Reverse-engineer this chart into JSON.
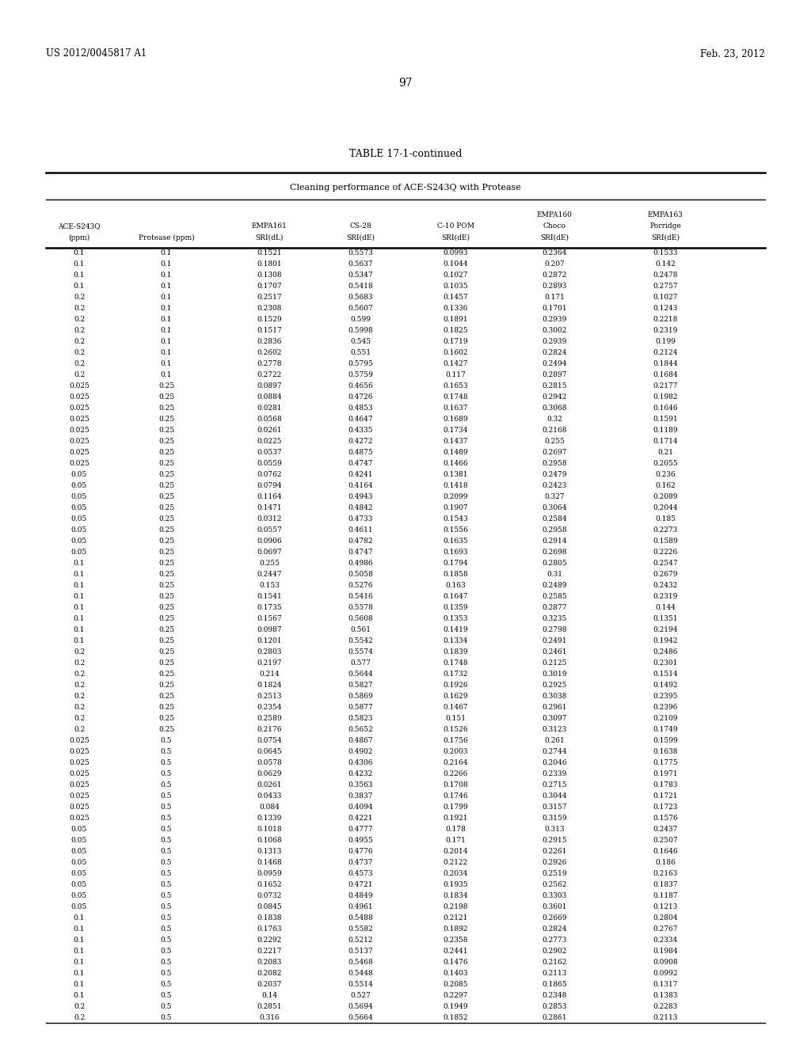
{
  "title": "TABLE 17-1-continued",
  "subtitle": "Cleaning performance of ACE-S243Q with Protease",
  "rows": [
    [
      "0.1",
      "0.1",
      "0.1521",
      "0.5573",
      "0.0993",
      "0.2364",
      "0.1533"
    ],
    [
      "0.1",
      "0.1",
      "0.1801",
      "0.5637",
      "0.1044",
      "0.207",
      "0.142"
    ],
    [
      "0.1",
      "0.1",
      "0.1308",
      "0.5347",
      "0.1027",
      "0.2872",
      "0.2478"
    ],
    [
      "0.1",
      "0.1",
      "0.1707",
      "0.5418",
      "0.1035",
      "0.2893",
      "0.2757"
    ],
    [
      "0.2",
      "0.1",
      "0.2517",
      "0.5683",
      "0.1457",
      "0.171",
      "0.1027"
    ],
    [
      "0.2",
      "0.1",
      "0.2308",
      "0.5607",
      "0.1336",
      "0.1701",
      "0.1243"
    ],
    [
      "0.2",
      "0.1",
      "0.1529",
      "0.599",
      "0.1891",
      "0.2939",
      "0.2218"
    ],
    [
      "0.2",
      "0.1",
      "0.1517",
      "0.5998",
      "0.1825",
      "0.3002",
      "0.2319"
    ],
    [
      "0.2",
      "0.1",
      "0.2836",
      "0.545",
      "0.1719",
      "0.2939",
      "0.199"
    ],
    [
      "0.2",
      "0.1",
      "0.2602",
      "0.551",
      "0.1602",
      "0.2824",
      "0.2124"
    ],
    [
      "0.2",
      "0.1",
      "0.2778",
      "0.5795",
      "0.1427",
      "0.2494",
      "0.1844"
    ],
    [
      "0.2",
      "0.1",
      "0.2722",
      "0.5759",
      "0.117",
      "0.2897",
      "0.1684"
    ],
    [
      "0.025",
      "0.25",
      "0.0897",
      "0.4656",
      "0.1653",
      "0.2815",
      "0.2177"
    ],
    [
      "0.025",
      "0.25",
      "0.0884",
      "0.4726",
      "0.1748",
      "0.2942",
      "0.1982"
    ],
    [
      "0.025",
      "0.25",
      "0.0281",
      "0.4853",
      "0.1637",
      "0.3068",
      "0.1646"
    ],
    [
      "0.025",
      "0.25",
      "0.0568",
      "0.4647",
      "0.1689",
      "0.32",
      "0.1591"
    ],
    [
      "0.025",
      "0.25",
      "0.0261",
      "0.4335",
      "0.1734",
      "0.2168",
      "0.1189"
    ],
    [
      "0.025",
      "0.25",
      "0.0225",
      "0.4272",
      "0.1437",
      "0.255",
      "0.1714"
    ],
    [
      "0.025",
      "0.25",
      "0.0537",
      "0.4875",
      "0.1489",
      "0.2697",
      "0.21"
    ],
    [
      "0.025",
      "0.25",
      "0.0559",
      "0.4747",
      "0.1466",
      "0.2958",
      "0.2055"
    ],
    [
      "0.05",
      "0.25",
      "0.0762",
      "0.4241",
      "0.1381",
      "0.2479",
      "0.236"
    ],
    [
      "0.05",
      "0.25",
      "0.0794",
      "0.4164",
      "0.1418",
      "0.2423",
      "0.162"
    ],
    [
      "0.05",
      "0.25",
      "0.1164",
      "0.4943",
      "0.2099",
      "0.327",
      "0.2089"
    ],
    [
      "0.05",
      "0.25",
      "0.1471",
      "0.4842",
      "0.1907",
      "0.3064",
      "0.2044"
    ],
    [
      "0.05",
      "0.25",
      "0.0312",
      "0.4733",
      "0.1543",
      "0.2584",
      "0.185"
    ],
    [
      "0.05",
      "0.25",
      "0.0557",
      "0.4611",
      "0.1556",
      "0.2958",
      "0.2273"
    ],
    [
      "0.05",
      "0.25",
      "0.0906",
      "0.4782",
      "0.1635",
      "0.2914",
      "0.1589"
    ],
    [
      "0.05",
      "0.25",
      "0.0697",
      "0.4747",
      "0.1693",
      "0.2698",
      "0.2226"
    ],
    [
      "0.1",
      "0.25",
      "0.255",
      "0.4986",
      "0.1794",
      "0.2805",
      "0.2547"
    ],
    [
      "0.1",
      "0.25",
      "0.2447",
      "0.5058",
      "0.1858",
      "0.31",
      "0.2679"
    ],
    [
      "0.1",
      "0.25",
      "0.153",
      "0.5276",
      "0.163",
      "0.2489",
      "0.2432"
    ],
    [
      "0.1",
      "0.25",
      "0.1541",
      "0.5416",
      "0.1647",
      "0.2585",
      "0.2319"
    ],
    [
      "0.1",
      "0.25",
      "0.1735",
      "0.5578",
      "0.1359",
      "0.2877",
      "0.144"
    ],
    [
      "0.1",
      "0.25",
      "0.1567",
      "0.5608",
      "0.1353",
      "0.3235",
      "0.1351"
    ],
    [
      "0.1",
      "0.25",
      "0.0987",
      "0.561",
      "0.1419",
      "0.2798",
      "0.2194"
    ],
    [
      "0.1",
      "0.25",
      "0.1201",
      "0.5542",
      "0.1334",
      "0.2491",
      "0.1942"
    ],
    [
      "0.2",
      "0.25",
      "0.2803",
      "0.5574",
      "0.1839",
      "0.2461",
      "0.2486"
    ],
    [
      "0.2",
      "0.25",
      "0.2197",
      "0.577",
      "0.1748",
      "0.2125",
      "0.2301"
    ],
    [
      "0.2",
      "0.25",
      "0.214",
      "0.5644",
      "0.1732",
      "0.3019",
      "0.1514"
    ],
    [
      "0.2",
      "0.25",
      "0.1824",
      "0.5827",
      "0.1926",
      "0.2925",
      "0.1492"
    ],
    [
      "0.2",
      "0.25",
      "0.2513",
      "0.5869",
      "0.1629",
      "0.3038",
      "0.2395"
    ],
    [
      "0.2",
      "0.25",
      "0.2354",
      "0.5877",
      "0.1467",
      "0.2961",
      "0.2396"
    ],
    [
      "0.2",
      "0.25",
      "0.2589",
      "0.5823",
      "0.151",
      "0.3097",
      "0.2109"
    ],
    [
      "0.2",
      "0.25",
      "0.2176",
      "0.5652",
      "0.1526",
      "0.3123",
      "0.1749"
    ],
    [
      "0.025",
      "0.5",
      "0.0754",
      "0.4867",
      "0.1756",
      "0.261",
      "0.1599"
    ],
    [
      "0.025",
      "0.5",
      "0.0645",
      "0.4902",
      "0.2003",
      "0.2744",
      "0.1638"
    ],
    [
      "0.025",
      "0.5",
      "0.0578",
      "0.4306",
      "0.2164",
      "0.2046",
      "0.1775"
    ],
    [
      "0.025",
      "0.5",
      "0.0629",
      "0.4232",
      "0.2266",
      "0.2339",
      "0.1971"
    ],
    [
      "0.025",
      "0.5",
      "0.0261",
      "0.3563",
      "0.1708",
      "0.2715",
      "0.1783"
    ],
    [
      "0.025",
      "0.5",
      "0.0433",
      "0.3837",
      "0.1746",
      "0.3044",
      "0.1721"
    ],
    [
      "0.025",
      "0.5",
      "0.084",
      "0.4094",
      "0.1799",
      "0.3157",
      "0.1723"
    ],
    [
      "0.025",
      "0.5",
      "0.1339",
      "0.4221",
      "0.1921",
      "0.3159",
      "0.1576"
    ],
    [
      "0.05",
      "0.5",
      "0.1018",
      "0.4777",
      "0.178",
      "0.313",
      "0.2437"
    ],
    [
      "0.05",
      "0.5",
      "0.1068",
      "0.4955",
      "0.171",
      "0.2915",
      "0.2507"
    ],
    [
      "0.05",
      "0.5",
      "0.1313",
      "0.4776",
      "0.2014",
      "0.2261",
      "0.1646"
    ],
    [
      "0.05",
      "0.5",
      "0.1468",
      "0.4737",
      "0.2122",
      "0.2926",
      "0.186"
    ],
    [
      "0.05",
      "0.5",
      "0.0959",
      "0.4573",
      "0.2034",
      "0.2519",
      "0.2163"
    ],
    [
      "0.05",
      "0.5",
      "0.1652",
      "0.4721",
      "0.1935",
      "0.2562",
      "0.1837"
    ],
    [
      "0.05",
      "0.5",
      "0.0732",
      "0.4849",
      "0.1834",
      "0.3303",
      "0.1187"
    ],
    [
      "0.05",
      "0.5",
      "0.0845",
      "0.4961",
      "0.2198",
      "0.3601",
      "0.1213"
    ],
    [
      "0.1",
      "0.5",
      "0.1838",
      "0.5488",
      "0.2121",
      "0.2669",
      "0.2804"
    ],
    [
      "0.1",
      "0.5",
      "0.1763",
      "0.5582",
      "0.1892",
      "0.2824",
      "0.2767"
    ],
    [
      "0.1",
      "0.5",
      "0.2292",
      "0.5212",
      "0.2358",
      "0.2773",
      "0.2334"
    ],
    [
      "0.1",
      "0.5",
      "0.2217",
      "0.5137",
      "0.2441",
      "0.2902",
      "0.1984"
    ],
    [
      "0.1",
      "0.5",
      "0.2083",
      "0.5468",
      "0.1476",
      "0.2162",
      "0.0908"
    ],
    [
      "0.1",
      "0.5",
      "0.2082",
      "0.5448",
      "0.1403",
      "0.2113",
      "0.0992"
    ],
    [
      "0.1",
      "0.5",
      "0.2037",
      "0.5514",
      "0.2085",
      "0.1865",
      "0.1317"
    ],
    [
      "0.1",
      "0.5",
      "0.14",
      "0.527",
      "0.2297",
      "0.2348",
      "0.1383"
    ],
    [
      "0.2",
      "0.5",
      "0.2851",
      "0.5694",
      "0.1949",
      "0.2853",
      "0.2283"
    ],
    [
      "0.2",
      "0.5",
      "0.316",
      "0.5664",
      "0.1852",
      "0.2861",
      "0.2113"
    ]
  ],
  "page_number": "97",
  "patent_left": "US 2012/0045817 A1",
  "patent_right": "Feb. 23, 2012",
  "background_color": "#ffffff",
  "text_color": "#000000",
  "font_size": 6.5,
  "header_font_size": 7.0,
  "title_font_size": 9.0
}
